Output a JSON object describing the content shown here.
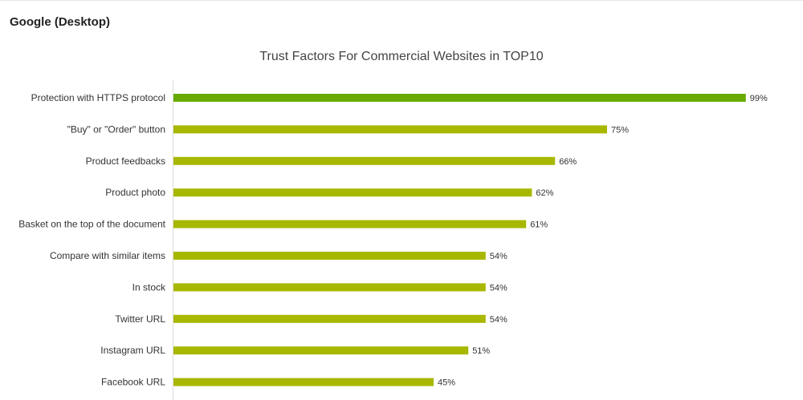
{
  "panel": {
    "title": "Google (Desktop)"
  },
  "chart_data": {
    "type": "bar",
    "orientation": "horizontal",
    "title": "Trust Factors For Commercial Websites in TOP10",
    "categories": [
      "Protection with HTTPS protocol",
      "\"Buy\" or \"Order\" button",
      "Product feedbacks",
      "Product photo",
      "Basket on the top of the document",
      "Compare with similar items",
      "In stock",
      "Twitter URL",
      "Instagram URL",
      "Facebook URL"
    ],
    "values": [
      99,
      75,
      66,
      62,
      61,
      54,
      54,
      54,
      51,
      45
    ],
    "value_labels": [
      "99%",
      "75%",
      "66%",
      "62%",
      "61%",
      "54%",
      "54%",
      "54%",
      "51%",
      "45%"
    ],
    "unit": "%",
    "xlim": [
      0,
      100
    ],
    "grid": false,
    "legend": "none",
    "colors": {
      "top": "#6aaa00",
      "rest": "#a8b800"
    }
  }
}
